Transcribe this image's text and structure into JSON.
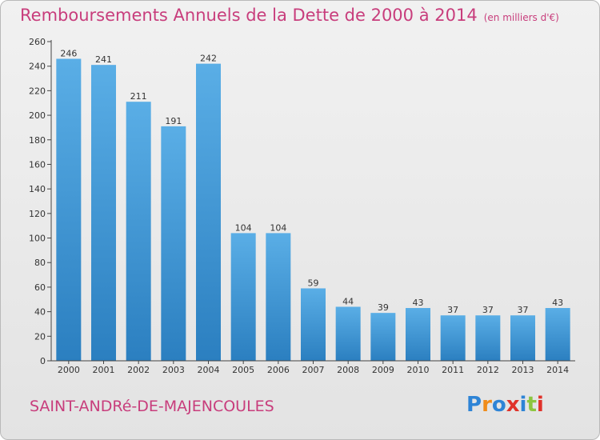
{
  "header": {
    "title": "Remboursements Annuels de la Dette de 2000 à 2014",
    "unit": "(en milliers d'€)"
  },
  "footer": {
    "commune": "SAINT-ANDRé-DE-MAJENCOULES",
    "logo": "Proxiti"
  },
  "colors": {
    "title": "#c83d7c",
    "bar_light": "#5aaee6",
    "bar_dark": "#2b7fc0",
    "logo": [
      "#2e84d6",
      "#f08c1a",
      "#2e84d6",
      "#e0322a",
      "#2e84d6",
      "#8cc63f",
      "#e0322a"
    ]
  },
  "chart_data": {
    "type": "bar",
    "title": "Remboursements Annuels de la Dette de 2000 à 2014",
    "ylabel": "",
    "xlabel": "",
    "categories": [
      "2000",
      "2001",
      "2002",
      "2003",
      "2004",
      "2005",
      "2006",
      "2007",
      "2008",
      "2009",
      "2010",
      "2011",
      "2012",
      "2013",
      "2014"
    ],
    "values": [
      246,
      241,
      211,
      191,
      242,
      104,
      104,
      59,
      44,
      39,
      43,
      37,
      37,
      37,
      43
    ],
    "ylim": [
      0,
      260
    ],
    "yticks": [
      0,
      20,
      40,
      60,
      80,
      100,
      120,
      140,
      160,
      180,
      200,
      220,
      240,
      260
    ],
    "grid": false,
    "legend": "none"
  }
}
